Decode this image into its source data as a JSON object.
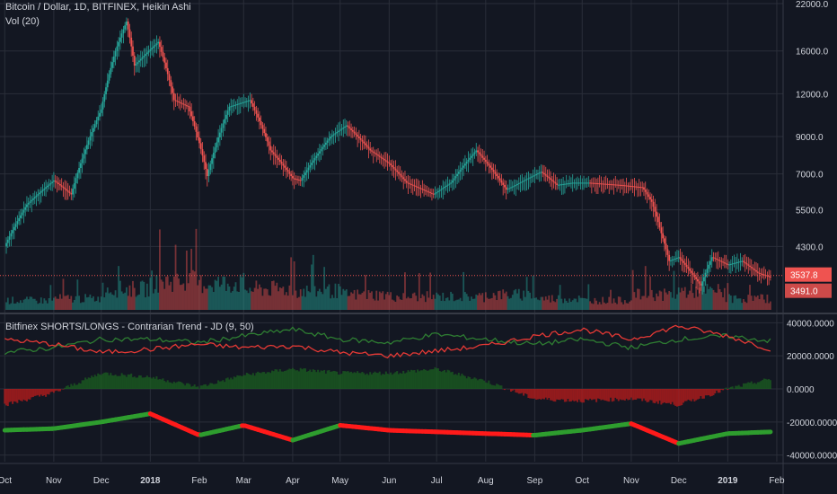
{
  "header": {
    "symbol_title": "Bitcoin / Dollar, 1D, BITFINEX, Heikin Ashi",
    "volume_title": "Vol (20)",
    "indicator_title": "Bitfinex SHORTS/LONGS - Contrarian Trend - JD (9, 50)"
  },
  "colors": {
    "background": "#131722",
    "grid": "#2a2e39",
    "up": "#26a69a",
    "down": "#ef5350",
    "volume_up": "#26a69a",
    "volume_down": "#ef5350",
    "green_line": "#2e7d32",
    "red_line": "#e53935",
    "hist_green": "#1b5e20",
    "hist_red": "#b71c1c",
    "trend_green": "#2e9d2e",
    "trend_red": "#ff1a1a",
    "axis_text": "#d1d4dc",
    "price_label_bg": "#ef5350"
  },
  "chart_data": [
    {
      "type": "line",
      "name": "price",
      "title": "Bitcoin / Dollar, 1D, BITFINEX, Heikin Ashi",
      "style": "heikin-ashi candles",
      "scale": "log",
      "x_tick_labels": [
        "Oct",
        "Nov",
        "Dec",
        "2018",
        "Feb",
        "Mar",
        "Apr",
        "May",
        "Jun",
        "Jul",
        "Aug",
        "Sep",
        "Oct",
        "Nov",
        "Dec",
        "2019",
        "Feb"
      ],
      "y_ticks": [
        22000,
        16000,
        12000,
        9000,
        7000,
        5500,
        4300
      ],
      "y_tick_labels": [
        "22000.0",
        "16000.0",
        "12000.0",
        "9000.0",
        "7000.0",
        "5500.0",
        "4300.0"
      ],
      "last_price_label": "3537.8",
      "secondary_price_label": "3491.0",
      "x": [
        "2017-10-01",
        "2017-10-15",
        "2017-11-01",
        "2017-11-12",
        "2017-11-20",
        "2017-12-01",
        "2017-12-10",
        "2017-12-17",
        "2017-12-22",
        "2017-12-28",
        "2018-01-06",
        "2018-01-16",
        "2018-01-25",
        "2018-02-06",
        "2018-02-20",
        "2018-03-05",
        "2018-03-18",
        "2018-04-01",
        "2018-04-06",
        "2018-04-25",
        "2018-05-05",
        "2018-05-20",
        "2018-06-01",
        "2018-06-12",
        "2018-06-29",
        "2018-07-10",
        "2018-07-26",
        "2018-08-14",
        "2018-08-20",
        "2018-09-05",
        "2018-09-15",
        "2018-09-25",
        "2018-10-05",
        "2018-10-25",
        "2018-11-08",
        "2018-11-14",
        "2018-11-20",
        "2018-11-25",
        "2018-12-01",
        "2018-12-15",
        "2018-12-22",
        "2019-01-01",
        "2019-01-10",
        "2019-01-20",
        "2019-01-28"
      ],
      "values": [
        4300,
        5700,
        6700,
        6100,
        8000,
        10800,
        16000,
        19500,
        14500,
        15500,
        17000,
        11500,
        11000,
        6900,
        11000,
        11500,
        8200,
        6800,
        6700,
        9000,
        9700,
        8200,
        7500,
        6600,
        6100,
        6600,
        8200,
        6300,
        6500,
        7100,
        6500,
        6600,
        6600,
        6500,
        6400,
        5800,
        4700,
        3900,
        4000,
        3300,
        4000,
        3800,
        3900,
        3600,
        3500
      ]
    },
    {
      "type": "bar",
      "name": "volume",
      "title": "Vol (20)",
      "x": [
        "2017-10",
        "2017-11",
        "2017-12",
        "2018-01",
        "2018-02",
        "2018-03",
        "2018-04",
        "2018-05",
        "2018-06",
        "2018-07",
        "2018-08",
        "2018-09",
        "2018-10",
        "2018-11",
        "2018-12",
        "2019-01"
      ],
      "values": [
        0.25,
        0.3,
        0.55,
        0.75,
        0.7,
        0.55,
        0.5,
        0.4,
        0.35,
        0.35,
        0.4,
        0.3,
        0.25,
        0.4,
        0.5,
        0.3
      ]
    },
    {
      "type": "line",
      "name": "indicator",
      "title": "Bitfinex SHORTS/LONGS - Contrarian Trend - JD (9, 50)",
      "y_ticks": [
        40000,
        20000,
        0,
        -20000,
        -40000
      ],
      "y_tick_labels": [
        "40000.0000",
        "20000.0000",
        "0.0000",
        "-20000.0000",
        "-40000.0000"
      ],
      "ylim": [
        -44000,
        44000
      ],
      "x": [
        "2017-10-01",
        "2017-11-01",
        "2017-12-01",
        "2018-01-01",
        "2018-02-01",
        "2018-03-01",
        "2018-04-01",
        "2018-05-01",
        "2018-06-01",
        "2018-07-01",
        "2018-08-01",
        "2018-09-01",
        "2018-10-01",
        "2018-11-01",
        "2018-12-01",
        "2019-01-01",
        "2019-01-28"
      ],
      "series": [
        {
          "values": [
            22000,
            25000,
            30000,
            30000,
            28000,
            32000,
            36000,
            30000,
            28000,
            33000,
            30000,
            27000,
            30000,
            25000,
            30000,
            32000,
            29000
          ]
        },
        {
          "values": [
            30000,
            27000,
            22000,
            24000,
            27000,
            25000,
            26000,
            22000,
            20000,
            23000,
            26000,
            32000,
            36000,
            30000,
            38000,
            32000,
            24000
          ]
        },
        {
          "values": [
            -25000,
            -24000,
            -20000,
            -15000,
            -28000,
            -22000,
            -31000,
            -22000,
            -25000,
            -26000,
            -27000,
            -28000,
            -25000,
            -21000,
            -33000,
            -27000,
            -26000
          ]
        }
      ]
    }
  ]
}
